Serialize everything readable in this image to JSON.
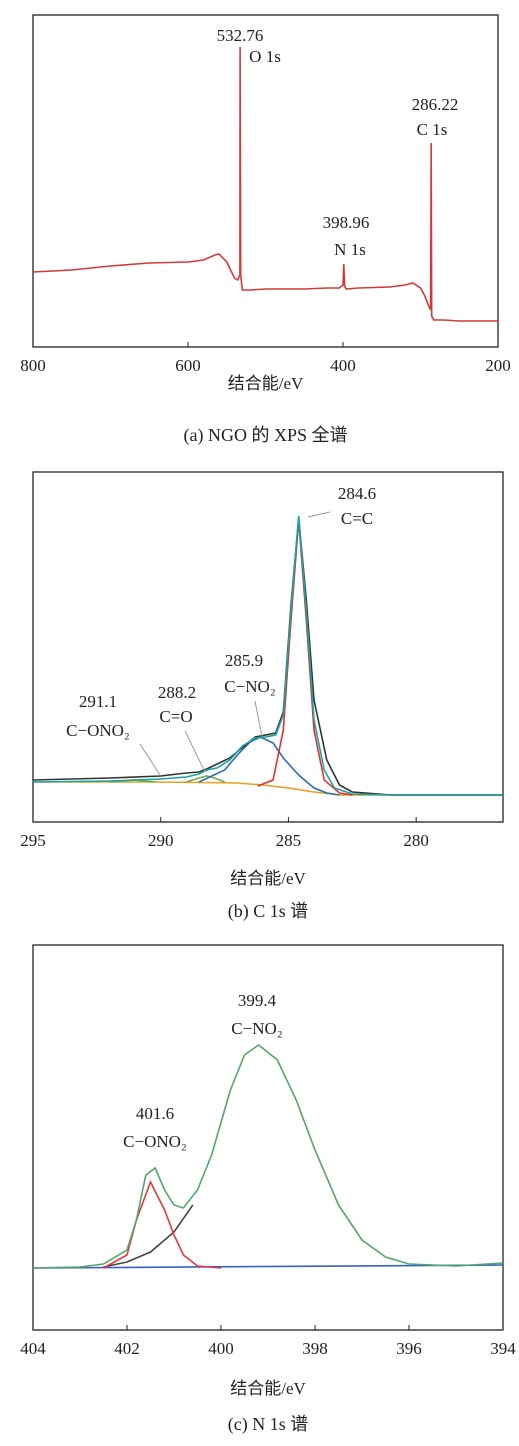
{
  "chart_data": [
    {
      "type": "line",
      "caption": "(a) NGO 的 XPS 全谱",
      "xlabel": "结合能/eV",
      "xlim": [
        800,
        200
      ],
      "xticks": [
        800,
        600,
        400,
        200
      ],
      "ylim": [
        0,
        332
      ],
      "annotations": [
        {
          "value": "532.76",
          "label": "O 1s"
        },
        {
          "value": "286.22",
          "label": "C 1s"
        },
        {
          "value": "398.96",
          "label": "N 1s"
        }
      ],
      "series": [
        {
          "color": "#d23a3a",
          "x": [
            800,
            750,
            700,
            650,
            600,
            580,
            565,
            560,
            550,
            545,
            540,
            536,
            533,
            532.76,
            532,
            530,
            520,
            500,
            450,
            420,
            405,
            400,
            398.96,
            398,
            396,
            380,
            340,
            320,
            310,
            300,
            295,
            290,
            287,
            286.22,
            285.5,
            283,
            270,
            250,
            200
          ],
          "values": [
            75,
            77,
            81,
            84,
            85,
            87,
            92,
            93,
            85,
            77,
            69,
            67,
            72,
            300,
            72,
            57,
            57,
            58,
            58,
            59,
            59,
            62,
            83,
            61,
            58,
            59,
            60,
            62,
            64,
            59,
            52,
            42,
            37,
            204,
            31,
            27,
            27,
            26,
            26
          ]
        }
      ]
    },
    {
      "type": "line",
      "caption": "(b) C 1s 谱",
      "xlabel": "结合能/eV",
      "xlim": [
        295,
        276.6
      ],
      "xticks": [
        295,
        290,
        285,
        280
      ],
      "ylim": [
        0,
        350
      ],
      "annotations": [
        {
          "value": "284.6",
          "label": "C=C"
        },
        {
          "value": "285.9",
          "label": "C−NO₂"
        },
        {
          "value": "288.2",
          "label": "C=O"
        },
        {
          "value": "291.1",
          "label": "C−ONO₂"
        }
      ],
      "series": [
        {
          "color": "#e8a020",
          "x": [
            295,
            290,
            287,
            286,
            285,
            284,
            283,
            281,
            276.6
          ],
          "values": [
            40,
            40,
            39,
            37,
            34,
            30,
            27,
            27,
            27
          ]
        },
        {
          "color": "#6bb04a",
          "x": [
            292,
            291.1,
            290.2
          ],
          "values": [
            40,
            42,
            40
          ]
        },
        {
          "color": "#6bb04a",
          "x": [
            289,
            288.5,
            288.2,
            287.9,
            287.5
          ],
          "values": [
            40,
            44,
            46,
            44,
            40
          ]
        },
        {
          "color": "#2a6db5",
          "x": [
            288.5,
            287.5,
            287,
            286.5,
            286.1,
            285.6,
            285.2,
            284.6,
            284.0,
            283.5,
            283
          ],
          "values": [
            40,
            52,
            67,
            80,
            85,
            79,
            64,
            47,
            34,
            29,
            27
          ]
        },
        {
          "color": "#e03030",
          "x": [
            286.2,
            285.6,
            285.2,
            284.9,
            284.6,
            284.3,
            284.0,
            283.6,
            283.0,
            282.5
          ],
          "values": [
            36,
            42,
            92,
            202,
            302,
            202,
            92,
            42,
            29,
            27
          ]
        },
        {
          "color": "#333333",
          "x": [
            295,
            292,
            290,
            289,
            288.5,
            288.2,
            287.3,
            286.3,
            285.5,
            285.2,
            284.9,
            284.6,
            284.3,
            284.0,
            283.5,
            283,
            282.5,
            281,
            276.6
          ],
          "values": [
            42,
            44,
            46,
            49,
            50,
            53,
            64,
            85,
            89,
            110,
            217,
            304,
            222,
            122,
            62,
            37,
            30,
            27,
            27
          ]
        },
        {
          "color": "#1aa3a3",
          "x": [
            295,
            292,
            290,
            289,
            288.5,
            288.2,
            287.8,
            287.3,
            286.8,
            286.3,
            285.9,
            285.5,
            285.2,
            284.9,
            284.6,
            284.3,
            284,
            283.6,
            283.2,
            282.5,
            281,
            276.6
          ],
          "values": [
            40,
            41,
            43,
            45,
            48,
            52,
            54,
            62,
            76,
            84,
            85,
            87,
            107,
            212,
            306,
            212,
            102,
            52,
            34,
            28,
            27,
            27
          ]
        }
      ]
    },
    {
      "type": "line",
      "caption": "(c) N 1s 谱",
      "xlabel": "结合能/eV",
      "xlim": [
        404,
        394
      ],
      "xticks": [
        404,
        402,
        400,
        398,
        396,
        394
      ],
      "ylim": [
        0,
        385
      ],
      "annotations": [
        {
          "value": "399.4",
          "label": "C−NO₂"
        },
        {
          "value": "401.6",
          "label": "C−ONO₂"
        }
      ],
      "series": [
        {
          "color": "#3a5fc8",
          "x": [
            404,
            394
          ],
          "values": [
            62,
            65
          ]
        },
        {
          "color": "#444444",
          "x": [
            402.5,
            402,
            401.5,
            401,
            400.6
          ],
          "values": [
            63,
            68,
            78,
            98,
            125
          ]
        },
        {
          "color": "#e03a3a",
          "x": [
            402.5,
            402,
            401.8,
            401.5,
            401.2,
            401,
            400.8,
            400.5,
            400
          ],
          "values": [
            62,
            75,
            110,
            148,
            120,
            95,
            75,
            64,
            62
          ]
        },
        {
          "color": "#4fa86a",
          "x": [
            404,
            403,
            402.5,
            402,
            401.8,
            401.6,
            401.4,
            401.2,
            401,
            400.8,
            400.5,
            400.2,
            399.8,
            399.5,
            399.2,
            398.8,
            398.4,
            398,
            397.5,
            397,
            396.5,
            396,
            395,
            394
          ],
          "values": [
            62,
            63,
            66,
            80,
            110,
            155,
            162,
            140,
            125,
            122,
            140,
            175,
            240,
            275,
            285,
            270,
            230,
            180,
            125,
            90,
            73,
            66,
            64,
            67
          ]
        }
      ]
    }
  ]
}
